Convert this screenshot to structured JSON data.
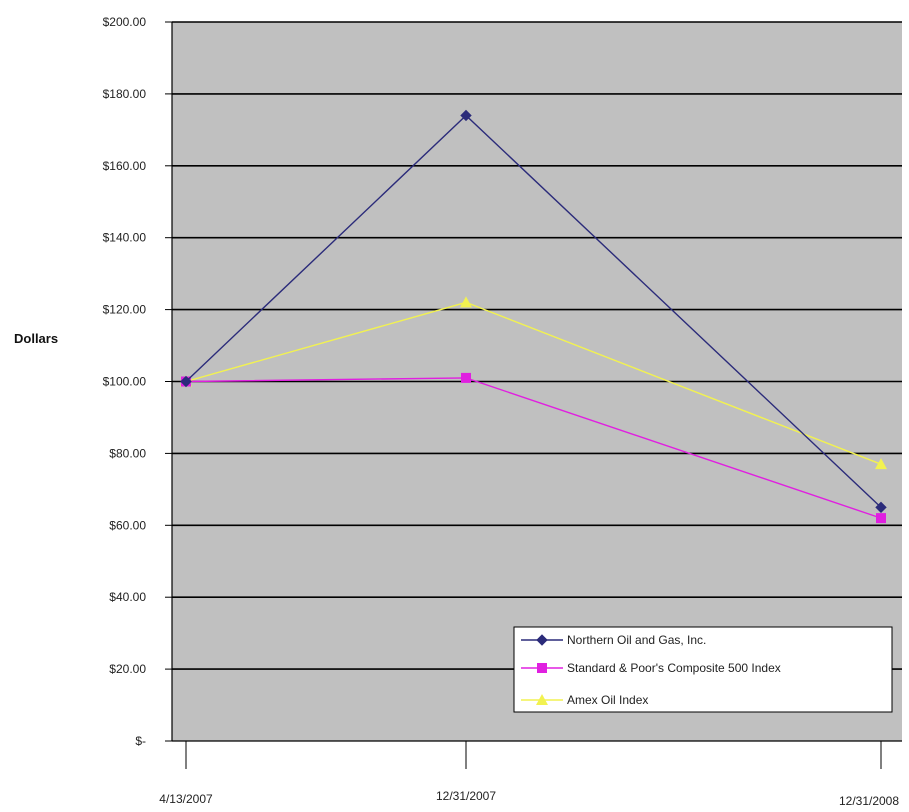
{
  "chart_data": {
    "type": "line",
    "title": "",
    "ylabel": "Dollars",
    "xlabel": "",
    "categories": [
      "4/13/2007",
      "12/31/2007",
      "12/31/2008"
    ],
    "ylim": [
      0,
      200
    ],
    "yticks": [
      {
        "value": 0,
        "label": "$-"
      },
      {
        "value": 20,
        "label": "$20.00"
      },
      {
        "value": 40,
        "label": "$40.00"
      },
      {
        "value": 60,
        "label": "$60.00"
      },
      {
        "value": 80,
        "label": "$80.00"
      },
      {
        "value": 100,
        "label": "$100.00"
      },
      {
        "value": 120,
        "label": "$120.00"
      },
      {
        "value": 140,
        "label": "$140.00"
      },
      {
        "value": 160,
        "label": "$160.00"
      },
      {
        "value": 180,
        "label": "$180.00"
      },
      {
        "value": 200,
        "label": "$200.00"
      }
    ],
    "grid": true,
    "plot_background": "#c0c0c0",
    "legend_position": "bottom-right",
    "series": [
      {
        "name": "Northern Oil and Gas, Inc.",
        "values": [
          100,
          174,
          65
        ],
        "color": "#2b2b7a",
        "marker": "diamond"
      },
      {
        "name": "Standard & Poor's Composite 500 Index",
        "values": [
          100,
          101,
          62
        ],
        "color": "#e020e0",
        "marker": "square"
      },
      {
        "name": "Amex Oil Index",
        "values": [
          100,
          122,
          77
        ],
        "color": "#f2f250",
        "marker": "triangle"
      }
    ]
  }
}
